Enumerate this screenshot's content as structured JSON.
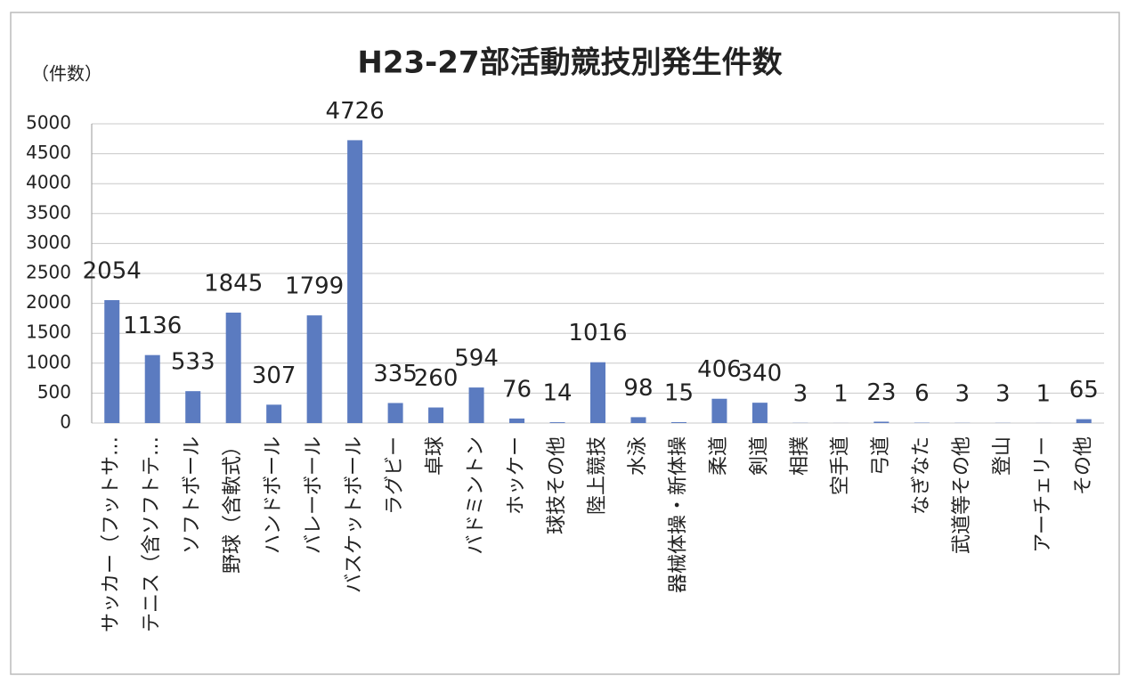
{
  "chart_data": {
    "type": "bar",
    "title": "H23-27部活動競技別発生件数",
    "y_label": "（件数）",
    "categories": [
      "サッカー（フットサ…",
      "テニス（含ソフトテ…",
      "ソフトボール",
      "野球（含軟式）",
      "ハンドボール",
      "バレーボール",
      "バスケットボール",
      "ラグビー",
      "卓球",
      "バドミントン",
      "ホッケー",
      "球技その他",
      "陸上競技",
      "水泳",
      "器械体操・新体操",
      "柔道",
      "剣道",
      "相撲",
      "空手道",
      "弓道",
      "なぎなた",
      "武道等その他",
      "登山",
      "アーチェリー",
      "その他"
    ],
    "values": [
      2054,
      1136,
      533,
      1845,
      307,
      1799,
      4726,
      335,
      260,
      594,
      76,
      14,
      1016,
      98,
      15,
      406,
      340,
      3,
      1,
      23,
      6,
      3,
      3,
      1,
      65
    ],
    "color": "#5b7bc0",
    "ylim": [
      0,
      5000
    ],
    "yticks": [
      0,
      500,
      1000,
      1500,
      2000,
      2500,
      3000,
      3500,
      4000,
      4500,
      5000
    ],
    "grid": true
  }
}
